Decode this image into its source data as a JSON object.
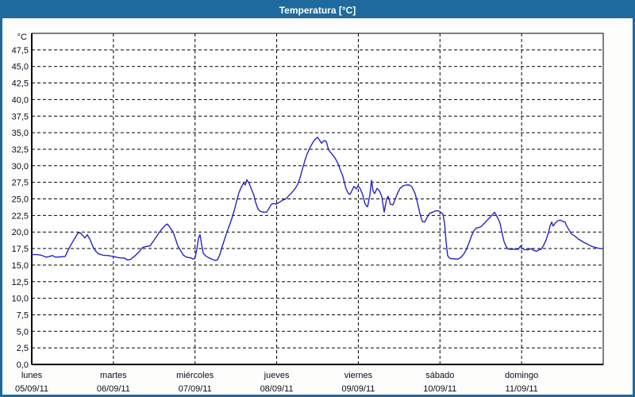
{
  "window": {
    "title": "Temperatura [°C]"
  },
  "colors": {
    "titlebar": "#1e6a9e",
    "border": "#1e6a9e",
    "window_bg": "#fdfdfb",
    "plot_bg": "#ffffff",
    "grid": "#000000",
    "text": "#0b0b20",
    "line": "#2525c8"
  },
  "chart_data": {
    "type": "line",
    "title": "Temperatura [°C]",
    "ylabel": "°C",
    "grid": "dashed",
    "legend": "none",
    "y_axis": {
      "min": 0,
      "max": 50,
      "tick_step": 2.5,
      "decimal_comma": true
    },
    "y_tick_labels": [
      "0,0",
      "2,5",
      "5,0",
      "7,5",
      "10,0",
      "12,5",
      "15,0",
      "17,5",
      "20,0",
      "22,5",
      "25,0",
      "27,5",
      "30,0",
      "32,5",
      "35,0",
      "37,5",
      "40,0",
      "42,5",
      "45,0",
      "47,5"
    ],
    "x_axis": {
      "unit": "days",
      "span_days": 7,
      "days": [
        {
          "name": "lunes",
          "date": "05/09/11"
        },
        {
          "name": "martes",
          "date": "06/09/11"
        },
        {
          "name": "miércoles",
          "date": "07/09/11"
        },
        {
          "name": "jueves",
          "date": "08/09/11"
        },
        {
          "name": "viernes",
          "date": "09/09/11"
        },
        {
          "name": "sábado",
          "date": "10/09/11"
        },
        {
          "name": "domingo",
          "date": "11/09/11"
        }
      ]
    },
    "series": [
      {
        "name": "Temperatura",
        "color": "#2525c8",
        "points": [
          [
            0.0,
            16.6
          ],
          [
            0.058,
            16.6
          ],
          [
            0.117,
            16.5
          ],
          [
            0.175,
            16.2
          ],
          [
            0.214,
            16.3
          ],
          [
            0.253,
            16.45
          ],
          [
            0.292,
            16.2
          ],
          [
            0.35,
            16.25
          ],
          [
            0.408,
            16.3
          ],
          [
            0.447,
            17.3
          ],
          [
            0.486,
            18.2
          ],
          [
            0.525,
            19.0
          ],
          [
            0.564,
            19.8
          ],
          [
            0.593,
            19.9
          ],
          [
            0.622,
            19.5
          ],
          [
            0.651,
            19.1
          ],
          [
            0.681,
            19.6
          ],
          [
            0.719,
            18.7
          ],
          [
            0.749,
            17.8
          ],
          [
            0.778,
            17.2
          ],
          [
            0.817,
            16.7
          ],
          [
            0.875,
            16.5
          ],
          [
            0.933,
            16.45
          ],
          [
            1.001,
            16.3
          ],
          [
            1.07,
            16.1
          ],
          [
            1.138,
            16.05
          ],
          [
            1.176,
            15.75
          ],
          [
            1.215,
            15.9
          ],
          [
            1.264,
            16.4
          ],
          [
            1.313,
            17.0
          ],
          [
            1.361,
            17.7
          ],
          [
            1.4,
            17.8
          ],
          [
            1.449,
            17.9
          ],
          [
            1.488,
            18.6
          ],
          [
            1.527,
            19.3
          ],
          [
            1.565,
            20.0
          ],
          [
            1.604,
            20.6
          ],
          [
            1.643,
            21.1
          ],
          [
            1.663,
            21.2
          ],
          [
            1.692,
            20.7
          ],
          [
            1.731,
            20.0
          ],
          [
            1.76,
            19.0
          ],
          [
            1.789,
            17.9
          ],
          [
            1.828,
            17.1
          ],
          [
            1.857,
            16.5
          ],
          [
            1.896,
            16.2
          ],
          [
            1.944,
            16.1
          ],
          [
            1.983,
            15.9
          ],
          [
            2.003,
            16.2
          ],
          [
            2.022,
            17.4
          ],
          [
            2.042,
            19.0
          ],
          [
            2.061,
            19.6
          ],
          [
            2.08,
            18.2
          ],
          [
            2.1,
            16.8
          ],
          [
            2.129,
            16.4
          ],
          [
            2.168,
            16.1
          ],
          [
            2.207,
            15.9
          ],
          [
            2.246,
            15.7
          ],
          [
            2.275,
            15.8
          ],
          [
            2.304,
            16.6
          ],
          [
            2.333,
            17.8
          ],
          [
            2.362,
            18.9
          ],
          [
            2.392,
            20.0
          ],
          [
            2.421,
            21.0
          ],
          [
            2.45,
            22.0
          ],
          [
            2.479,
            23.2
          ],
          [
            2.508,
            24.6
          ],
          [
            2.537,
            25.9
          ],
          [
            2.567,
            26.8
          ],
          [
            2.596,
            27.4
          ],
          [
            2.615,
            27.1
          ],
          [
            2.635,
            27.9
          ],
          [
            2.664,
            27.3
          ],
          [
            2.693,
            26.4
          ],
          [
            2.722,
            25.5
          ],
          [
            2.742,
            24.5
          ],
          [
            2.771,
            23.5
          ],
          [
            2.8,
            23.1
          ],
          [
            2.839,
            23.0
          ],
          [
            2.878,
            23.0
          ],
          [
            2.907,
            23.6
          ],
          [
            2.936,
            24.2
          ],
          [
            2.965,
            24.3
          ],
          [
            2.995,
            24.2
          ],
          [
            3.033,
            24.5
          ],
          [
            3.072,
            24.8
          ],
          [
            3.111,
            25.0
          ],
          [
            3.15,
            25.5
          ],
          [
            3.189,
            26.0
          ],
          [
            3.228,
            26.6
          ],
          [
            3.257,
            27.2
          ],
          [
            3.286,
            28.2
          ],
          [
            3.315,
            29.5
          ],
          [
            3.345,
            30.8
          ],
          [
            3.374,
            31.8
          ],
          [
            3.403,
            32.6
          ],
          [
            3.442,
            33.5
          ],
          [
            3.471,
            34.0
          ],
          [
            3.5,
            34.3
          ],
          [
            3.529,
            33.8
          ],
          [
            3.549,
            33.4
          ],
          [
            3.578,
            33.8
          ],
          [
            3.607,
            33.7
          ],
          [
            3.636,
            32.4
          ],
          [
            3.675,
            31.8
          ],
          [
            3.714,
            31.2
          ],
          [
            3.753,
            30.3
          ],
          [
            3.782,
            29.3
          ],
          [
            3.811,
            28.4
          ],
          [
            3.831,
            27.4
          ],
          [
            3.85,
            26.5
          ],
          [
            3.879,
            25.8
          ],
          [
            3.899,
            25.7
          ],
          [
            3.928,
            26.4
          ],
          [
            3.947,
            26.9
          ],
          [
            3.976,
            26.5
          ],
          [
            3.996,
            27.0
          ],
          [
            4.025,
            26.5
          ],
          [
            4.054,
            25.6
          ],
          [
            4.083,
            24.2
          ],
          [
            4.113,
            23.8
          ],
          [
            4.142,
            25.6
          ],
          [
            4.161,
            27.8
          ],
          [
            4.181,
            26.2
          ],
          [
            4.2,
            25.8
          ],
          [
            4.229,
            26.6
          ],
          [
            4.258,
            26.2
          ],
          [
            4.287,
            25.4
          ],
          [
            4.317,
            23.0
          ],
          [
            4.346,
            25.0
          ],
          [
            4.365,
            25.4
          ],
          [
            4.394,
            24.2
          ],
          [
            4.424,
            24.1
          ],
          [
            4.453,
            25.0
          ],
          [
            4.482,
            25.9
          ],
          [
            4.511,
            26.6
          ],
          [
            4.55,
            27.0
          ],
          [
            4.589,
            27.1
          ],
          [
            4.628,
            27.1
          ],
          [
            4.657,
            26.8
          ],
          [
            4.696,
            25.8
          ],
          [
            4.725,
            24.4
          ],
          [
            4.754,
            22.8
          ],
          [
            4.783,
            21.6
          ],
          [
            4.813,
            21.5
          ],
          [
            4.842,
            22.2
          ],
          [
            4.871,
            22.8
          ],
          [
            4.91,
            23.0
          ],
          [
            4.949,
            23.2
          ],
          [
            4.978,
            23.2
          ],
          [
            5.007,
            23.0
          ],
          [
            5.036,
            22.7
          ],
          [
            5.056,
            21.4
          ],
          [
            5.075,
            18.5
          ],
          [
            5.094,
            16.4
          ],
          [
            5.124,
            16.0
          ],
          [
            5.172,
            15.95
          ],
          [
            5.221,
            15.9
          ],
          [
            5.26,
            16.2
          ],
          [
            5.299,
            16.8
          ],
          [
            5.328,
            17.5
          ],
          [
            5.357,
            18.4
          ],
          [
            5.386,
            19.4
          ],
          [
            5.415,
            20.2
          ],
          [
            5.444,
            20.6
          ],
          [
            5.483,
            20.7
          ],
          [
            5.512,
            20.9
          ],
          [
            5.542,
            21.3
          ],
          [
            5.58,
            21.8
          ],
          [
            5.619,
            22.3
          ],
          [
            5.649,
            22.7
          ],
          [
            5.668,
            23.0
          ],
          [
            5.687,
            22.6
          ],
          [
            5.717,
            21.9
          ],
          [
            5.736,
            21.3
          ],
          [
            5.755,
            20.2
          ],
          [
            5.784,
            18.6
          ],
          [
            5.814,
            17.7
          ],
          [
            5.843,
            17.4
          ],
          [
            5.882,
            17.4
          ],
          [
            5.921,
            17.4
          ],
          [
            5.959,
            17.4
          ],
          [
            5.989,
            17.9
          ],
          [
            6.008,
            17.5
          ],
          [
            6.037,
            17.35
          ],
          [
            6.076,
            17.3
          ],
          [
            6.115,
            17.5
          ],
          [
            6.154,
            17.2
          ],
          [
            6.183,
            17.1
          ],
          [
            6.212,
            17.3
          ],
          [
            6.241,
            17.4
          ],
          [
            6.27,
            18.0
          ],
          [
            6.3,
            18.8
          ],
          [
            6.329,
            19.9
          ],
          [
            6.348,
            20.9
          ],
          [
            6.368,
            21.5
          ],
          [
            6.387,
            20.9
          ],
          [
            6.416,
            21.4
          ],
          [
            6.445,
            21.7
          ],
          [
            6.475,
            21.8
          ],
          [
            6.504,
            21.6
          ],
          [
            6.533,
            21.5
          ],
          [
            6.553,
            20.9
          ],
          [
            6.582,
            20.3
          ],
          [
            6.611,
            19.7
          ],
          [
            6.65,
            19.4
          ],
          [
            6.688,
            19.0
          ],
          [
            6.727,
            18.7
          ],
          [
            6.766,
            18.4
          ],
          [
            6.805,
            18.2
          ],
          [
            6.844,
            17.9
          ],
          [
            6.883,
            17.75
          ],
          [
            6.922,
            17.6
          ],
          [
            6.961,
            17.5
          ],
          [
            6.99,
            17.5
          ]
        ]
      }
    ]
  }
}
